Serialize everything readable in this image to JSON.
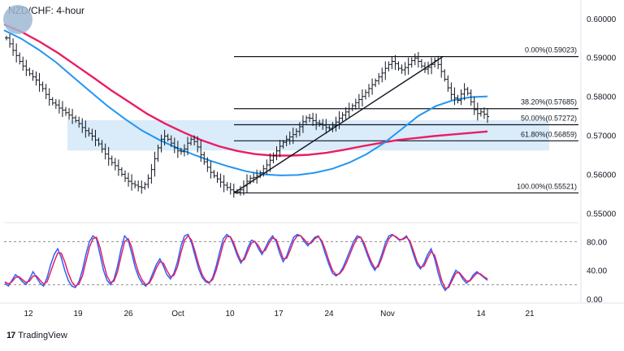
{
  "header": {
    "title": "NZD/CHF: 4-hour"
  },
  "footer": {
    "brand": "TradingView",
    "logo": "tradingview-logo-icon"
  },
  "chart_data": [
    {
      "type": "line",
      "title": "NZD/CHF: 4-hour",
      "pair": "NZD/CHF",
      "timeframe": "4-hour",
      "x_tick_labels": [
        "12",
        "19",
        "26",
        "Oct",
        "10",
        "17",
        "24",
        "Nov",
        "14",
        "21"
      ],
      "y_tick_labels": [
        "0.60000",
        "0.59000",
        "0.58000",
        "0.57000",
        "0.56000",
        "0.55000"
      ],
      "ylim": [
        0.548,
        0.6035
      ],
      "grid": false,
      "colors": {
        "price": "#131722",
        "sma_slow": "#e91e63",
        "sma_fast": "#2196f3",
        "zone": "#d6e9fa",
        "fib": "#131722",
        "stoch_k": "#2962ff",
        "stoch_d": "#e91e63"
      },
      "price_closes": [
        0.595,
        0.5935,
        0.5918,
        0.5905,
        0.589,
        0.5878,
        0.5868,
        0.5858,
        0.585,
        0.5842,
        0.583,
        0.582,
        0.5805,
        0.5792,
        0.5783,
        0.5778,
        0.577,
        0.5765,
        0.5758,
        0.5752,
        0.5745,
        0.5738,
        0.573,
        0.572,
        0.5712,
        0.5705,
        0.5698,
        0.5688,
        0.5678,
        0.5665,
        0.5652,
        0.564,
        0.563,
        0.5622,
        0.5612,
        0.56,
        0.559,
        0.5582,
        0.5576,
        0.5572,
        0.5568,
        0.5566,
        0.5574,
        0.559,
        0.5612,
        0.564,
        0.5668,
        0.569,
        0.5698,
        0.569,
        0.568,
        0.5668,
        0.566,
        0.5658,
        0.5665,
        0.568,
        0.569,
        0.5684,
        0.567,
        0.565,
        0.5632,
        0.5618,
        0.5605,
        0.5596,
        0.5588,
        0.558,
        0.5572,
        0.5566,
        0.556,
        0.5556,
        0.5555,
        0.556,
        0.557,
        0.5582,
        0.559,
        0.5592,
        0.5596,
        0.5604,
        0.5614,
        0.5624,
        0.5636,
        0.5648,
        0.566,
        0.5672,
        0.5682,
        0.569,
        0.5696,
        0.5702,
        0.571,
        0.5722,
        0.5735,
        0.5745,
        0.5744,
        0.5738,
        0.5732,
        0.573,
        0.5726,
        0.572,
        0.5718,
        0.5724,
        0.5734,
        0.5744,
        0.5752,
        0.576,
        0.5768,
        0.5776,
        0.5784,
        0.5792,
        0.58,
        0.581,
        0.582,
        0.583,
        0.584,
        0.585,
        0.586,
        0.5872,
        0.5882,
        0.589,
        0.5884,
        0.5872,
        0.5868,
        0.5874,
        0.5882,
        0.5892,
        0.5898,
        0.589,
        0.5878,
        0.587,
        0.5875,
        0.5882,
        0.5892,
        0.5882,
        0.5864,
        0.5844,
        0.5822,
        0.5805,
        0.5796,
        0.579,
        0.5806,
        0.5818,
        0.5808,
        0.5786,
        0.5766,
        0.5756,
        0.576,
        0.5754,
        0.5748
      ],
      "sma_slow": [
        0.5985,
        0.5965,
        0.594,
        0.5912,
        0.588,
        0.5848,
        0.5815,
        0.5785,
        0.5755,
        0.573,
        0.5708,
        0.5688,
        0.5672,
        0.566,
        0.5652,
        0.5648,
        0.5648,
        0.565,
        0.5655,
        0.5663,
        0.5672,
        0.568,
        0.5688,
        0.5693,
        0.5698,
        0.5702,
        0.5706,
        0.571
      ],
      "sma_fast": [
        0.597,
        0.5948,
        0.592,
        0.5888,
        0.585,
        0.5812,
        0.5775,
        0.5742,
        0.5712,
        0.5688,
        0.5668,
        0.565,
        0.5634,
        0.562,
        0.5608,
        0.56,
        0.5597,
        0.5598,
        0.5604,
        0.5614,
        0.563,
        0.5652,
        0.568,
        0.5715,
        0.575,
        0.5775,
        0.579,
        0.5798,
        0.58
      ],
      "demand_zone": [
        0.5661,
        0.5739
      ],
      "fibonacci": [
        {
          "label": "0.00%(0.59023)",
          "level": 0.59023
        },
        {
          "label": "38.20%(0.57685)",
          "level": 0.57685
        },
        {
          "label": "50.00%(0.57272)",
          "level": 0.57272
        },
        {
          "label": "61.80%(0.56859)",
          "level": 0.56859
        },
        {
          "label": "100.00%(0.55521)",
          "level": 0.55521
        }
      ],
      "trendline": {
        "from": 0.5552,
        "to": 0.5902
      }
    },
    {
      "type": "line",
      "indicator": "stochastic",
      "y_tick_labels": [
        "80.00",
        "40.00",
        "0.00"
      ],
      "ylim": [
        0,
        100
      ],
      "reference_levels": [
        80,
        20
      ],
      "series": [
        {
          "values": [
            22,
            18,
            26,
            34,
            30,
            24,
            20,
            28,
            38,
            30,
            22,
            18,
            30,
            48,
            62,
            70,
            58,
            40,
            26,
            18,
            16,
            24,
            40,
            62,
            80,
            88,
            84,
            62,
            40,
            26,
            20,
            28,
            46,
            70,
            88,
            82,
            64,
            44,
            30,
            22,
            18,
            24,
            36,
            48,
            56,
            46,
            34,
            28,
            36,
            52,
            74,
            88,
            90,
            78,
            60,
            42,
            30,
            24,
            22,
            30,
            46,
            66,
            84,
            90,
            86,
            74,
            60,
            50,
            58,
            72,
            82,
            80,
            70,
            62,
            72,
            82,
            88,
            80,
            64,
            52,
            60,
            74,
            86,
            90,
            88,
            80,
            74,
            80,
            86,
            88,
            78,
            62,
            48,
            36,
            32,
            36,
            44,
            56,
            68,
            80,
            88,
            86,
            74,
            60,
            48,
            40,
            48,
            62,
            78,
            88,
            90,
            86,
            82,
            84,
            88,
            78,
            62,
            48,
            42,
            50,
            62,
            70,
            56,
            36,
            20,
            12,
            18,
            30,
            40,
            36,
            28,
            22,
            26,
            34,
            38,
            34,
            30,
            26
          ]
        },
        {
          "values": [
            24,
            21,
            24,
            30,
            31,
            27,
            23,
            25,
            32,
            32,
            26,
            21,
            24,
            38,
            52,
            64,
            64,
            52,
            36,
            24,
            18,
            21,
            32,
            52,
            72,
            84,
            86,
            72,
            50,
            32,
            23,
            25,
            38,
            60,
            80,
            84,
            72,
            52,
            36,
            26,
            20,
            22,
            31,
            43,
            52,
            50,
            40,
            31,
            33,
            45,
            65,
            82,
            88,
            82,
            66,
            48,
            34,
            26,
            23,
            27,
            40,
            58,
            77,
            87,
            87,
            78,
            64,
            53,
            55,
            67,
            78,
            80,
            74,
            65,
            68,
            78,
            85,
            83,
            70,
            56,
            57,
            68,
            81,
            88,
            88,
            83,
            77,
            78,
            84,
            87,
            81,
            68,
            53,
            40,
            34,
            35,
            41,
            51,
            63,
            75,
            85,
            86,
            78,
            64,
            52,
            43,
            45,
            57,
            72,
            84,
            89,
            87,
            83,
            83,
            86,
            81,
            67,
            52,
            44,
            46,
            57,
            66,
            61,
            44,
            26,
            15,
            16,
            26,
            36,
            37,
            31,
            25,
            25,
            31,
            36,
            35,
            31,
            28
          ]
        }
      ]
    }
  ]
}
